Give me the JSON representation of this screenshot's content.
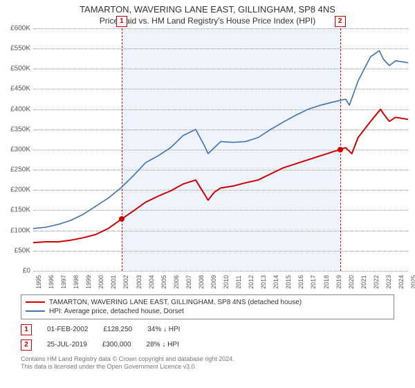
{
  "header": {
    "title": "TAMARTON, WAVERING LANE EAST, GILLINGHAM, SP8 4NS",
    "subtitle": "Price paid vs. HM Land Registry's House Price Index (HPI)"
  },
  "chart": {
    "type": "line",
    "background_color": "#ffffff",
    "grid_color": "#999999",
    "shade_color": "rgba(120,160,220,0.12)",
    "x": {
      "min": 1995,
      "max": 2025,
      "ticks": [
        1995,
        1996,
        1997,
        1998,
        1999,
        2000,
        2001,
        2002,
        2003,
        2004,
        2005,
        2006,
        2007,
        2008,
        2009,
        2010,
        2011,
        2012,
        2013,
        2014,
        2015,
        2016,
        2017,
        2018,
        2019,
        2020,
        2021,
        2022,
        2023,
        2024,
        2025
      ],
      "shade_start": 2002.08,
      "shade_end": 2019.56
    },
    "y": {
      "min": 0,
      "max": 600000,
      "step": 50000,
      "prefix": "£",
      "suffix": "K",
      "divisor": 1000
    },
    "series": [
      {
        "key": "price_paid",
        "label": "TAMARTON, WAVERING LANE EAST, GILLINGHAM, SP8 4NS (detached house)",
        "color": "#cc0000",
        "width": 2,
        "points": [
          [
            1995,
            70000
          ],
          [
            1996,
            72000
          ],
          [
            1997,
            72000
          ],
          [
            1998,
            76000
          ],
          [
            1999,
            82000
          ],
          [
            2000,
            90000
          ],
          [
            2001,
            105000
          ],
          [
            2002.08,
            128250
          ],
          [
            2003,
            148000
          ],
          [
            2004,
            170000
          ],
          [
            2005,
            185000
          ],
          [
            2006,
            198000
          ],
          [
            2007,
            215000
          ],
          [
            2008,
            225000
          ],
          [
            2008.7,
            190000
          ],
          [
            2009,
            175000
          ],
          [
            2009.5,
            195000
          ],
          [
            2010,
            205000
          ],
          [
            2011,
            210000
          ],
          [
            2012,
            218000
          ],
          [
            2013,
            225000
          ],
          [
            2014,
            240000
          ],
          [
            2015,
            255000
          ],
          [
            2016,
            265000
          ],
          [
            2017,
            275000
          ],
          [
            2018,
            285000
          ],
          [
            2019,
            295000
          ],
          [
            2019.56,
            300000
          ],
          [
            2020,
            305000
          ],
          [
            2020.5,
            290000
          ],
          [
            2021,
            330000
          ],
          [
            2022,
            370000
          ],
          [
            2022.8,
            400000
          ],
          [
            2023,
            390000
          ],
          [
            2023.5,
            370000
          ],
          [
            2024,
            380000
          ],
          [
            2025,
            375000
          ]
        ]
      },
      {
        "key": "hpi",
        "label": "HPI: Average price, detached house, Dorset",
        "color": "#3b6fb6",
        "width": 1.6,
        "points": [
          [
            1995,
            105000
          ],
          [
            1996,
            108000
          ],
          [
            1997,
            115000
          ],
          [
            1998,
            125000
          ],
          [
            1999,
            140000
          ],
          [
            2000,
            160000
          ],
          [
            2001,
            180000
          ],
          [
            2002,
            205000
          ],
          [
            2003,
            235000
          ],
          [
            2004,
            268000
          ],
          [
            2005,
            285000
          ],
          [
            2006,
            305000
          ],
          [
            2007,
            335000
          ],
          [
            2008,
            350000
          ],
          [
            2008.7,
            310000
          ],
          [
            2009,
            290000
          ],
          [
            2009.5,
            305000
          ],
          [
            2010,
            320000
          ],
          [
            2011,
            318000
          ],
          [
            2012,
            320000
          ],
          [
            2013,
            330000
          ],
          [
            2014,
            350000
          ],
          [
            2015,
            368000
          ],
          [
            2016,
            385000
          ],
          [
            2017,
            400000
          ],
          [
            2018,
            410000
          ],
          [
            2019,
            418000
          ],
          [
            2020,
            425000
          ],
          [
            2020.3,
            410000
          ],
          [
            2021,
            470000
          ],
          [
            2022,
            530000
          ],
          [
            2022.7,
            545000
          ],
          [
            2023,
            525000
          ],
          [
            2023.5,
            508000
          ],
          [
            2024,
            520000
          ],
          [
            2025,
            515000
          ]
        ]
      }
    ],
    "markers": [
      {
        "id": "1",
        "x": 2002.08,
        "y": 128250,
        "color": "#cc0000"
      },
      {
        "id": "2",
        "x": 2019.56,
        "y": 300000,
        "color": "#cc0000"
      }
    ]
  },
  "marker_rows": [
    {
      "id": "1",
      "color": "#cc0000",
      "date": "01-FEB-2002",
      "price": "£128,250",
      "delta": "34% ↓ HPI"
    },
    {
      "id": "2",
      "color": "#cc0000",
      "date": "25-JUL-2019",
      "price": "£300,000",
      "delta": "28% ↓ HPI"
    }
  ],
  "footer": {
    "line1": "Contains HM Land Registry data © Crown copyright and database right 2024.",
    "line2": "This data is licensed under the Open Government Licence v3.0."
  }
}
